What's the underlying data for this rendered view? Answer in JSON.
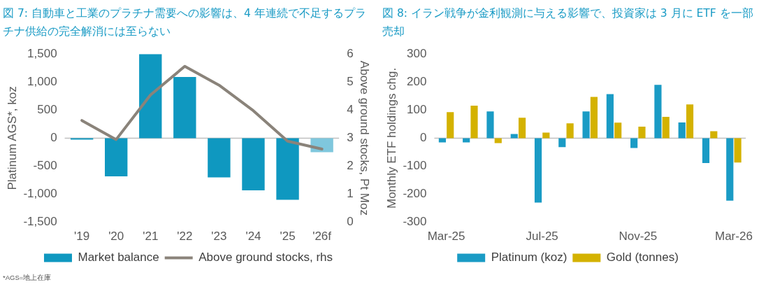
{
  "chart_data": [
    {
      "type": "bar",
      "title": "図 7: 自動車と工業のプラチナ需要への影響は、4 年連続で不足するプラチナ供給の完全解消には至らない",
      "ylabel": "Platinum AGS*, koz",
      "y2label": "Above ground stocks, Pt Moz",
      "categories": [
        "'19",
        "'20",
        "'21",
        "'22",
        "'23",
        "'24",
        "'25",
        "'26f"
      ],
      "series": [
        {
          "name": "Market balance",
          "color": "#0f98c0",
          "colors": [
            "#0f98c0",
            "#0f98c0",
            "#0f98c0",
            "#0f98c0",
            "#0f98c0",
            "#0f98c0",
            "#0f98c0",
            "#7fc7dd"
          ],
          "values": [
            -25,
            -680,
            1500,
            1090,
            -700,
            -930,
            -1100,
            -250
          ]
        },
        {
          "name": "Above ground stocks, rhs",
          "type": "line",
          "axis": "y2",
          "color": "#8a837a",
          "values": [
            3.63,
            2.95,
            4.54,
            5.56,
            4.89,
            3.98,
            2.89,
            2.61
          ]
        }
      ],
      "ylim": [
        -1500,
        1500
      ],
      "yticks": [
        {
          "value": -1500,
          "label": "-1,500"
        },
        {
          "value": -1000,
          "label": "-1,000"
        },
        {
          "value": -500,
          "label": "-500"
        },
        {
          "value": 0,
          "label": "0"
        },
        {
          "value": 500,
          "label": "500"
        },
        {
          "value": 1000,
          "label": "1,000"
        },
        {
          "value": 1500,
          "label": "1,500"
        }
      ],
      "y2lim": [
        0,
        6
      ],
      "y2ticks": [
        0,
        1,
        2,
        3,
        4,
        5,
        6
      ],
      "legend": "bottom",
      "marker": "none",
      "line_style": "solid",
      "annotations": [
        "*AGS=地上在庫"
      ]
    },
    {
      "type": "bar",
      "title": "図 8: イラン戦争が金利観測に与える影響で、投資家は 3 月に ETF を一部売却",
      "ylabel": "Monthly ETF holdings chg.",
      "categories": [
        "Mar-25",
        null,
        null,
        null,
        "Jul-25",
        null,
        null,
        null,
        "Nov-25",
        null,
        null,
        null,
        "Mar-26"
      ],
      "series": [
        {
          "name": "Platinum (koz)",
          "color": "#1a9bc5",
          "values": [
            -15,
            -15,
            95,
            15,
            -230,
            -32,
            95,
            157,
            -35,
            190,
            56,
            -89,
            -223
          ]
        },
        {
          "name": "Gold (tonnes)",
          "color": "#d4b200",
          "values": [
            93,
            116,
            -18,
            73,
            20,
            53,
            147,
            55,
            41,
            76,
            120,
            25,
            -87
          ]
        }
      ],
      "ylim": [
        -300,
        300
      ],
      "yticks": [
        -300,
        -200,
        -100,
        0,
        100,
        200,
        300
      ],
      "legend": "bottom"
    }
  ]
}
